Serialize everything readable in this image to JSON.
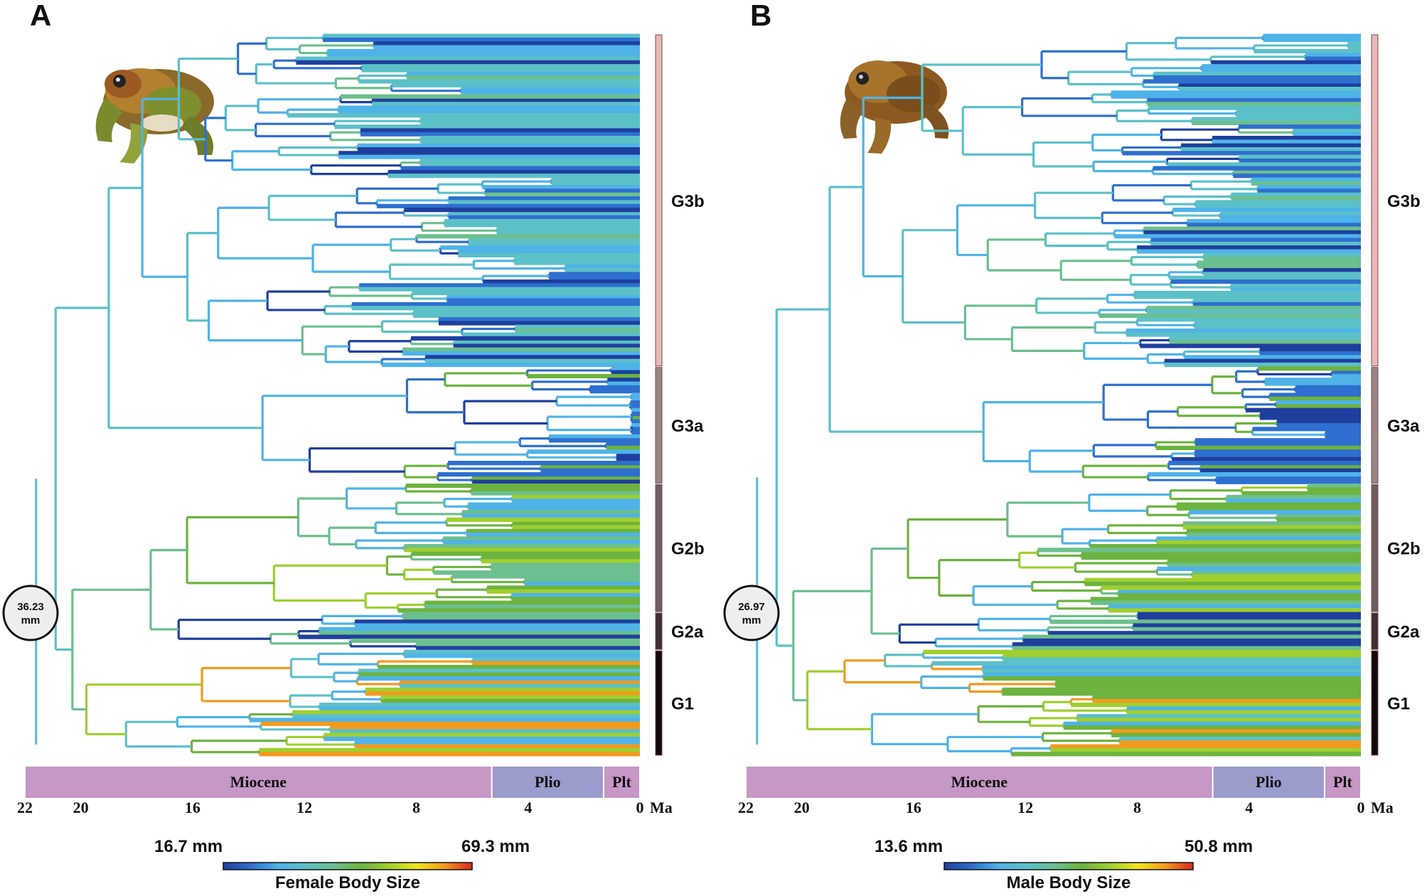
{
  "figure": {
    "type": "phylogeny",
    "colorscale": [
      "#1f3f9e",
      "#2e6fcf",
      "#4fb3e8",
      "#5cc0c8",
      "#6cbf8e",
      "#6db33f",
      "#9fcf2f",
      "#f2e51c",
      "#f39a1d",
      "#e1261c"
    ],
    "era_colors": {
      "Miocene": "#c797c6",
      "Plio": "#9a9ccc",
      "Plt": "#c797c6"
    },
    "panels": [
      {
        "letter": "A",
        "root_value": "36.23",
        "root_unit": "mm",
        "scale_min": "16.7 mm",
        "scale_max": "69.3 mm",
        "scale_title": "Female Body Size",
        "photo_caption": "frog-photo-female",
        "clades": [
          {
            "name": "G3b",
            "color": "#e8b8b8",
            "tips": 88
          },
          {
            "name": "G3a",
            "color": "#9a8485",
            "tips": 31
          },
          {
            "name": "G2b",
            "color": "#6e5e60",
            "tips": 34
          },
          {
            "name": "G2a",
            "color": "#3e2f32",
            "tips": 10
          },
          {
            "name": "G1",
            "color": "#120608",
            "tips": 28
          }
        ],
        "eras": [
          {
            "name": "Miocene",
            "from": 22,
            "to": 5.3
          },
          {
            "name": "Plio",
            "from": 5.3,
            "to": 1.3
          },
          {
            "name": "Plt",
            "from": 1.3,
            "to": 0
          }
        ],
        "ticks": [
          "22",
          "20",
          "16",
          "12",
          "8",
          "4",
          "0"
        ],
        "unit": "Ma",
        "xlim": [
          22,
          0
        ]
      },
      {
        "letter": "B",
        "root_value": "26.97",
        "root_unit": "mm",
        "scale_min": "13.6 mm",
        "scale_max": "50.8 mm",
        "scale_title": "Male Body Size",
        "photo_caption": "frog-photo-male",
        "clades": [
          {
            "name": "G3b",
            "color": "#e8b8b8",
            "tips": 88
          },
          {
            "name": "G3a",
            "color": "#9a8485",
            "tips": 31
          },
          {
            "name": "G2b",
            "color": "#6e5e60",
            "tips": 34
          },
          {
            "name": "G2a",
            "color": "#3e2f32",
            "tips": 10
          },
          {
            "name": "G1",
            "color": "#120608",
            "tips": 28
          }
        ],
        "eras": [
          {
            "name": "Miocene",
            "from": 22,
            "to": 5.3
          },
          {
            "name": "Plio",
            "from": 5.3,
            "to": 1.3
          },
          {
            "name": "Plt",
            "from": 1.3,
            "to": 0
          }
        ],
        "ticks": [
          "22",
          "20",
          "16",
          "12",
          "8",
          "4",
          "0"
        ],
        "unit": "Ma",
        "xlim": [
          22,
          0
        ]
      }
    ]
  }
}
